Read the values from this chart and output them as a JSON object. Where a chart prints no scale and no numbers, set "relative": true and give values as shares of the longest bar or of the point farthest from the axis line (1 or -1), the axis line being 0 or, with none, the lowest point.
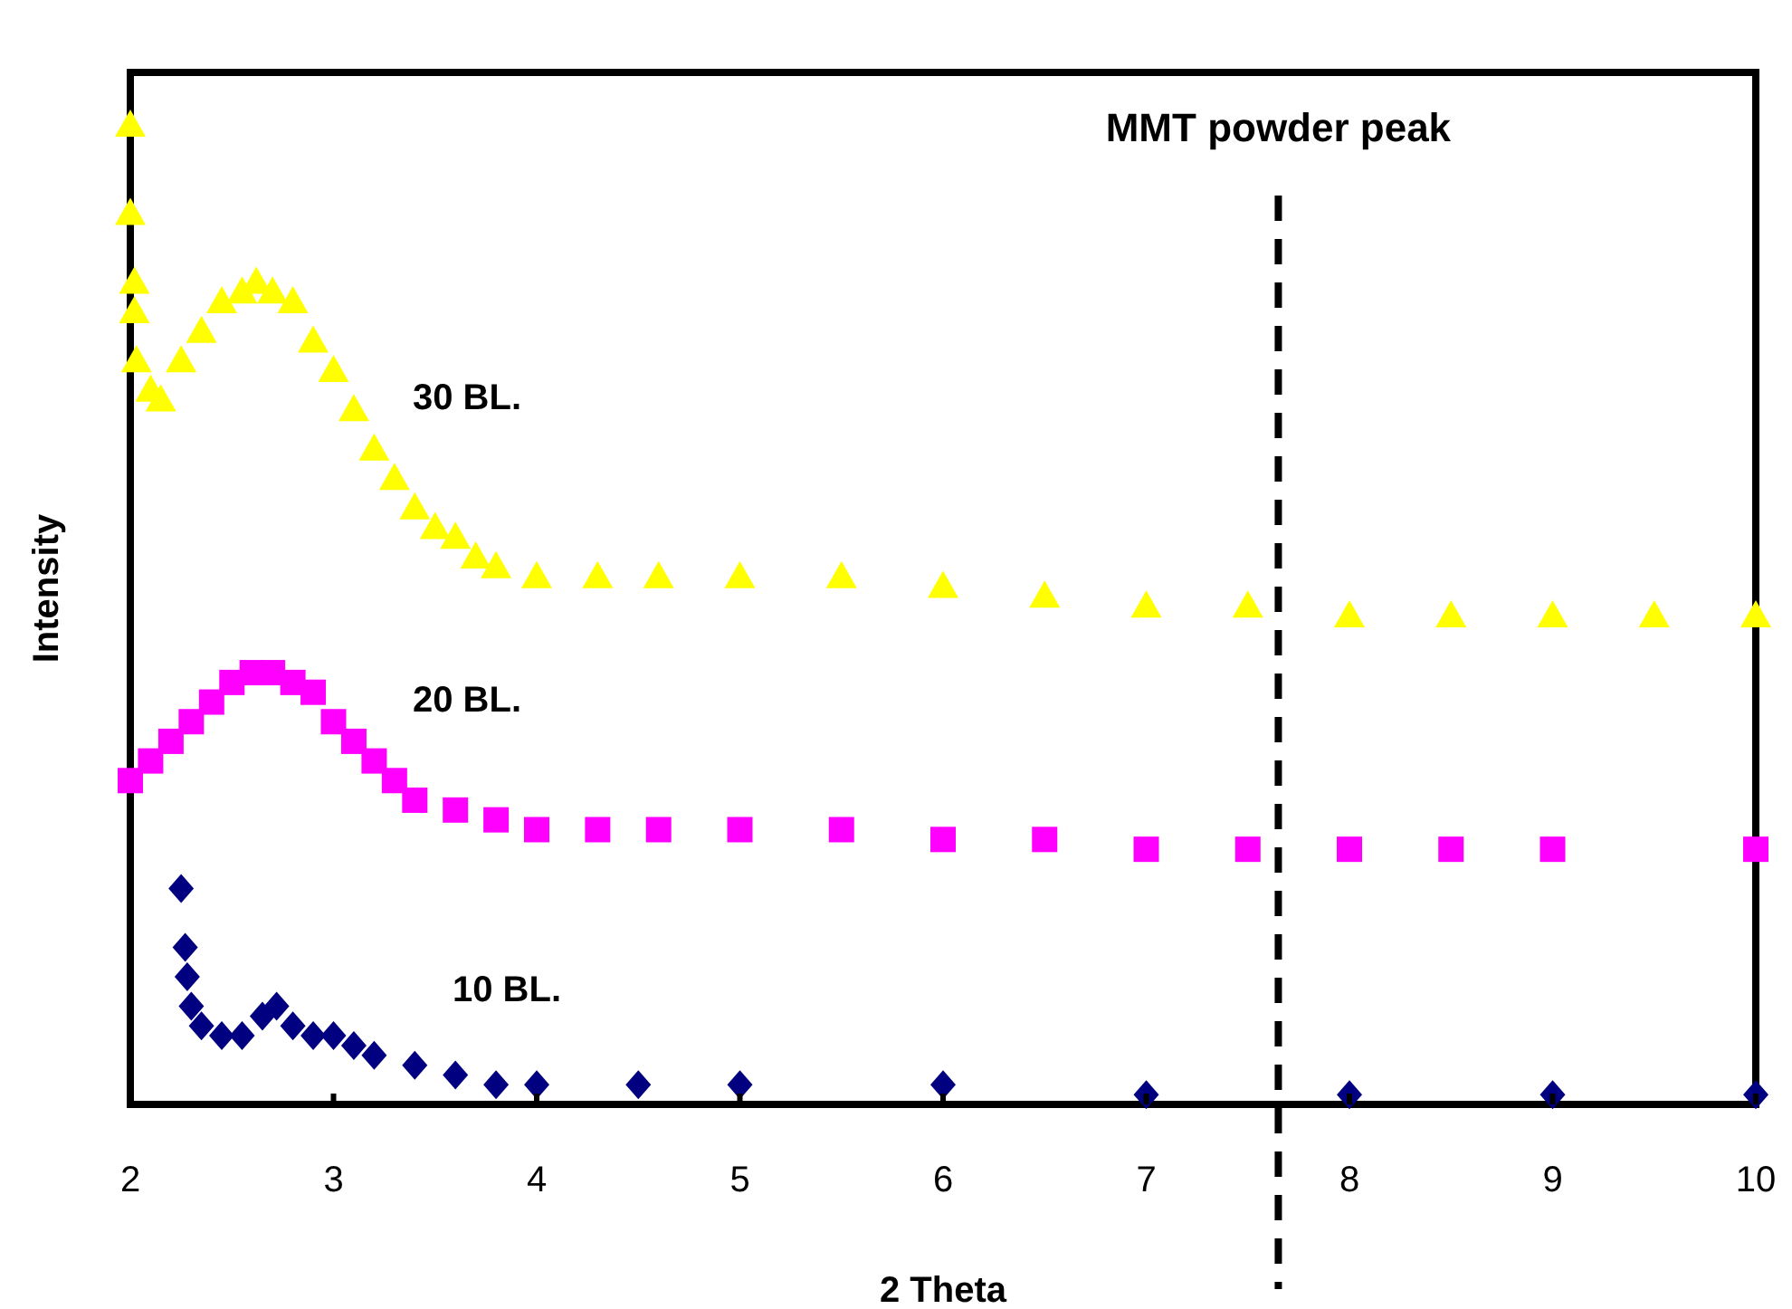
{
  "chart_data": {
    "type": "scatter",
    "relative": true,
    "xlabel": "2 Theta",
    "ylabel": "Intensity",
    "xlim": [
      2,
      10
    ],
    "xticks": [
      2,
      3,
      4,
      5,
      6,
      7,
      8,
      9,
      10
    ],
    "grid": false,
    "ref_lines": [
      {
        "axis": "x",
        "value": 7.65,
        "label": "MMT powder peak",
        "color": "#000000",
        "line_style": "dashed"
      }
    ],
    "series": [
      {
        "name": "30 BL.",
        "color": "#ffff00",
        "marker": "triangle",
        "x": [
          2.0,
          2.0,
          2.02,
          2.02,
          2.03,
          2.1,
          2.15,
          2.25,
          2.35,
          2.45,
          2.55,
          2.62,
          2.7,
          2.8,
          2.9,
          3.0,
          3.1,
          3.2,
          3.3,
          3.4,
          3.5,
          3.6,
          3.7,
          3.8,
          4.0,
          4.3,
          4.6,
          5.0,
          5.5,
          6.0,
          6.5,
          7.0,
          7.5,
          8.0,
          8.5,
          9.0,
          9.5,
          10.0
        ],
        "values": [
          1.0,
          0.91,
          0.84,
          0.81,
          0.76,
          0.73,
          0.72,
          0.76,
          0.79,
          0.82,
          0.83,
          0.84,
          0.83,
          0.82,
          0.78,
          0.75,
          0.71,
          0.67,
          0.64,
          0.61,
          0.59,
          0.58,
          0.56,
          0.55,
          0.54,
          0.54,
          0.54,
          0.54,
          0.54,
          0.53,
          0.52,
          0.51,
          0.51,
          0.5,
          0.5,
          0.5,
          0.5,
          0.5
        ]
      },
      {
        "name": "20 BL.",
        "color": "#ff00ff",
        "marker": "square",
        "x": [
          2.0,
          2.1,
          2.2,
          2.3,
          2.4,
          2.5,
          2.6,
          2.7,
          2.8,
          2.9,
          3.0,
          3.1,
          3.2,
          3.3,
          3.4,
          3.6,
          3.8,
          4.0,
          4.3,
          4.6,
          5.0,
          5.5,
          6.0,
          6.5,
          7.0,
          7.5,
          8.0,
          8.5,
          9.0,
          10.0
        ],
        "values": [
          0.33,
          0.35,
          0.37,
          0.39,
          0.41,
          0.43,
          0.44,
          0.44,
          0.43,
          0.42,
          0.39,
          0.37,
          0.35,
          0.33,
          0.31,
          0.3,
          0.29,
          0.28,
          0.28,
          0.28,
          0.28,
          0.28,
          0.27,
          0.27,
          0.26,
          0.26,
          0.26,
          0.26,
          0.26,
          0.26
        ]
      },
      {
        "name": "10 BL.",
        "color": "#000080",
        "marker": "diamond",
        "x": [
          2.25,
          2.27,
          2.28,
          2.3,
          2.35,
          2.45,
          2.55,
          2.65,
          2.72,
          2.8,
          2.9,
          3.0,
          3.1,
          3.2,
          3.4,
          3.6,
          3.8,
          4.0,
          4.5,
          5.0,
          6.0,
          7.0,
          8.0,
          9.0,
          10.0
        ],
        "values": [
          0.22,
          0.16,
          0.13,
          0.1,
          0.08,
          0.07,
          0.07,
          0.09,
          0.1,
          0.08,
          0.07,
          0.07,
          0.06,
          0.05,
          0.04,
          0.03,
          0.02,
          0.02,
          0.02,
          0.02,
          0.02,
          0.01,
          0.01,
          0.01,
          0.01
        ]
      }
    ]
  }
}
